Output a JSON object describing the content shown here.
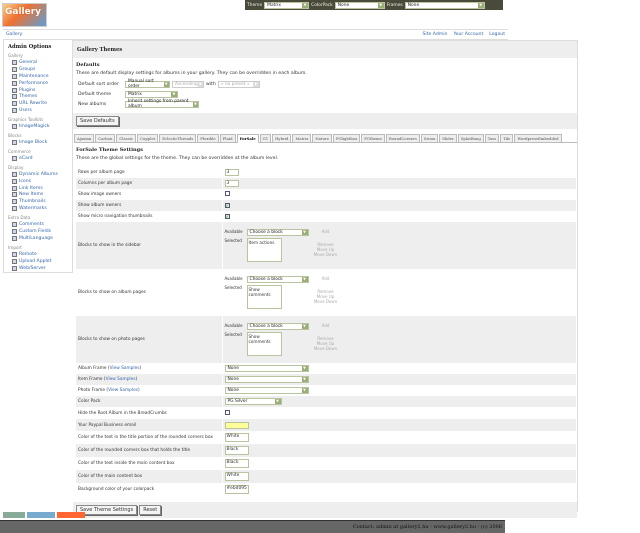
{
  "topbar": {
    "theme_label": "Theme",
    "theme_value": "Matrix",
    "colorpack_label": "ColorPack",
    "colorpack_value": "None",
    "frames_label": "Frames",
    "frames_value": "None"
  },
  "logo_text": "Gallery",
  "nav": {
    "breadcrumb": "Gallery",
    "site_admin": "Site Admin",
    "your_account": "Your Account",
    "logout": "Logout"
  },
  "sidebar": {
    "title": "Admin Options",
    "groups": [
      {
        "label": "Gallery",
        "items": [
          "General",
          "Groups",
          "Maintenance",
          "Performance",
          "Plugins",
          "Themes",
          "URL Rewrite",
          "Users"
        ]
      },
      {
        "label": "Graphics Toolkits",
        "items": [
          "ImageMagick"
        ]
      },
      {
        "label": "Blocks",
        "items": [
          "Image Block"
        ]
      },
      {
        "label": "Commerce",
        "items": [
          "eCard"
        ]
      },
      {
        "label": "Display",
        "items": [
          "Dynamic Albums",
          "Icons",
          "Link Items",
          "New Items",
          "Thumbnails",
          "Watermarks"
        ]
      },
      {
        "label": "Extra Data",
        "items": [
          "Comments",
          "Custom Fields",
          "MultiLanguage"
        ]
      },
      {
        "label": "Import",
        "items": [
          "Remote",
          "Upload Applet",
          "Web/Server"
        ]
      }
    ],
    "current": "Themes"
  },
  "main": {
    "title": "Gallery Themes",
    "defaults": {
      "heading": "Defaults",
      "description": "These are default display settings for albums in your gallery. They can be overridden in each album.",
      "sort_label": "Default sort order",
      "sort_value": "Manual sort order",
      "direction_value": "Ascending",
      "with_label": "with",
      "preset_value": "« no preset »",
      "theme_label": "Default theme",
      "theme_value": "Matrix",
      "new_albums_label": "New albums",
      "new_albums_value": "Inherit settings from parent album",
      "save_label": "Save Defaults"
    },
    "tabs": [
      "Ajaxian",
      "Carbon",
      "Classic",
      "Cupplet",
      "EclecticThreads",
      "Flexible",
      "Fluid",
      "ForSale",
      "G1",
      "Hybrid",
      "Matrix",
      "Nature",
      "PGlightbox",
      "PGtheme",
      "RoundCorners",
      "Siriux",
      "Slider",
      "SplatBang",
      "Tass",
      "Tile",
      "WordpressEmbedded"
    ],
    "active_tab": "ForSale",
    "settings": {
      "heading": "ForSale Theme Settings",
      "description": "These are the global settings for the theme. They can be overridden at the album level.",
      "rows_label": "Rows per album page",
      "rows_value": "3",
      "cols_label": "Columns per album page",
      "cols_value": "3",
      "show_image_owners_label": "Show image owners",
      "show_image_owners": false,
      "show_album_owners_label": "Show album owners",
      "show_album_owners": true,
      "show_micro_label": "Show micro navigation thumbnails",
      "show_micro": true,
      "block_available_label": "Available",
      "block_selected_label": "Selected",
      "choose_block": "Choose a block",
      "add": "Add",
      "remove": "Remove",
      "move_up": "Move Up",
      "move_down": "Move Down",
      "sidebar_blocks_label": "Blocks to show in the sidebar",
      "sidebar_blocks_selected": "Item actions",
      "album_blocks_label": "Blocks to show on album pages",
      "album_blocks_selected": "Show comments",
      "photo_blocks_label": "Blocks to show on photo pages",
      "photo_blocks_selected": "Show comments",
      "view_samples": "View Samples",
      "album_frame_label": "Album Frame",
      "album_frame_value": "None",
      "item_frame_label": "Item Frame",
      "item_frame_value": "None",
      "photo_frame_label": "Photo Frame",
      "photo_frame_value": "None",
      "color_pack_label": "Color Pack",
      "color_pack_value": "PG Silver",
      "hide_root_label": "Hide the Root Album in the BreadCrumbs",
      "hide_root": false,
      "paypal_label": "Your Paypal Business email",
      "paypal_value": "",
      "title_text_color_label": "Color of the text in the title portion of the rounded corners box",
      "title_text_color": "White",
      "rounded_box_color_label": "Color of the rounded corners box that holds the title",
      "rounded_box_color": "Black",
      "content_text_color_label": "Color of the text inside the main content box",
      "content_text_color": "Black",
      "content_box_color_label": "Color of the main content box",
      "content_box_color": "White",
      "bg_color_label": "Background color of your colorpack",
      "bg_color": "#ebd095",
      "save_label": "Save Theme Settings",
      "reset_label": "Reset"
    }
  },
  "footer": {
    "contact": "Contact: admin at gallery2.hu - www.gallery2.hu - (c) 2006"
  },
  "colors": {
    "link": "#3366aa",
    "topbar": "#4a4a3a",
    "footer": "#666666",
    "paypal_field": "#ffff99"
  }
}
